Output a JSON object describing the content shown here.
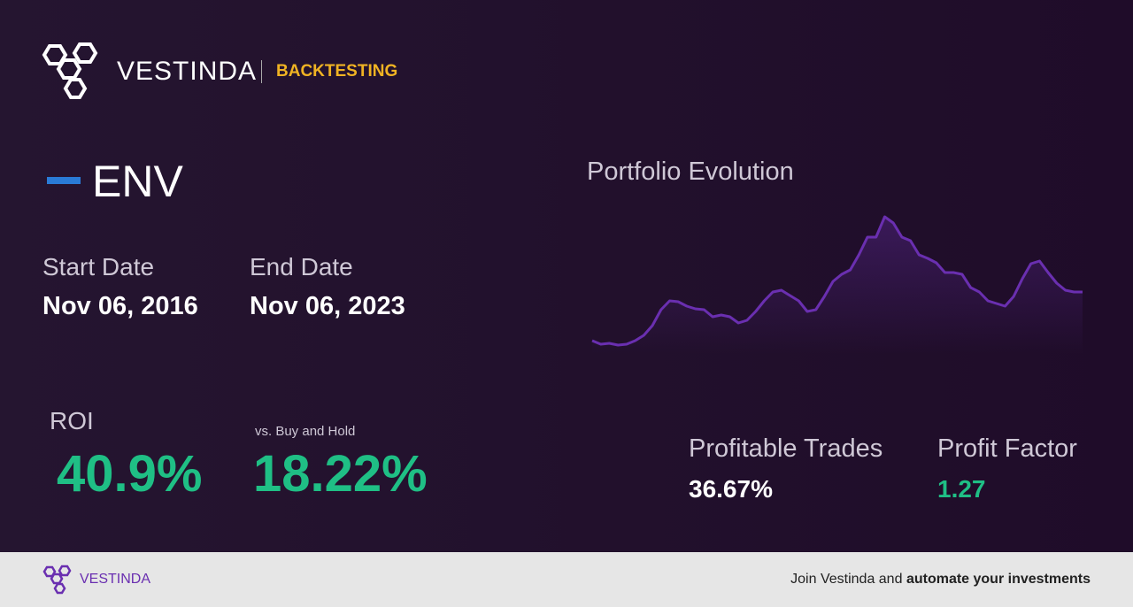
{
  "header": {
    "brand": "VESTINDA",
    "section": "BACKTESTING"
  },
  "ticker": "ENV",
  "dates": {
    "start_label": "Start Date",
    "start": "Nov 06, 2016",
    "end_label": "End Date",
    "end": "Nov 06, 2023"
  },
  "stats": {
    "roi_label": "ROI",
    "roi": "40.9%",
    "vs_label": "vs. Buy and Hold",
    "vs": "18.22%",
    "trades_label": "Profitable Trades",
    "trades": "36.67%",
    "factor_label": "Profit Factor",
    "factor": "1.27"
  },
  "chart_data": {
    "type": "line",
    "title": "Portfolio Evolution",
    "color": "#6a2fb0",
    "values": [
      15,
      11,
      12,
      10,
      11,
      15,
      21,
      32,
      50,
      60,
      59,
      54,
      51,
      50,
      42,
      44,
      42,
      35,
      38,
      48,
      60,
      70,
      72,
      66,
      60,
      48,
      50,
      65,
      82,
      90,
      95,
      112,
      132,
      132,
      155,
      148,
      132,
      128,
      112,
      108,
      103,
      92,
      92,
      90,
      75,
      70,
      60,
      57,
      54,
      65,
      85,
      102,
      105,
      92,
      80,
      72,
      70,
      70
    ]
  },
  "footer": {
    "brand": "VESTINDA",
    "cta": "Join Vestinda and",
    "cta_bold": "automate your investments"
  }
}
